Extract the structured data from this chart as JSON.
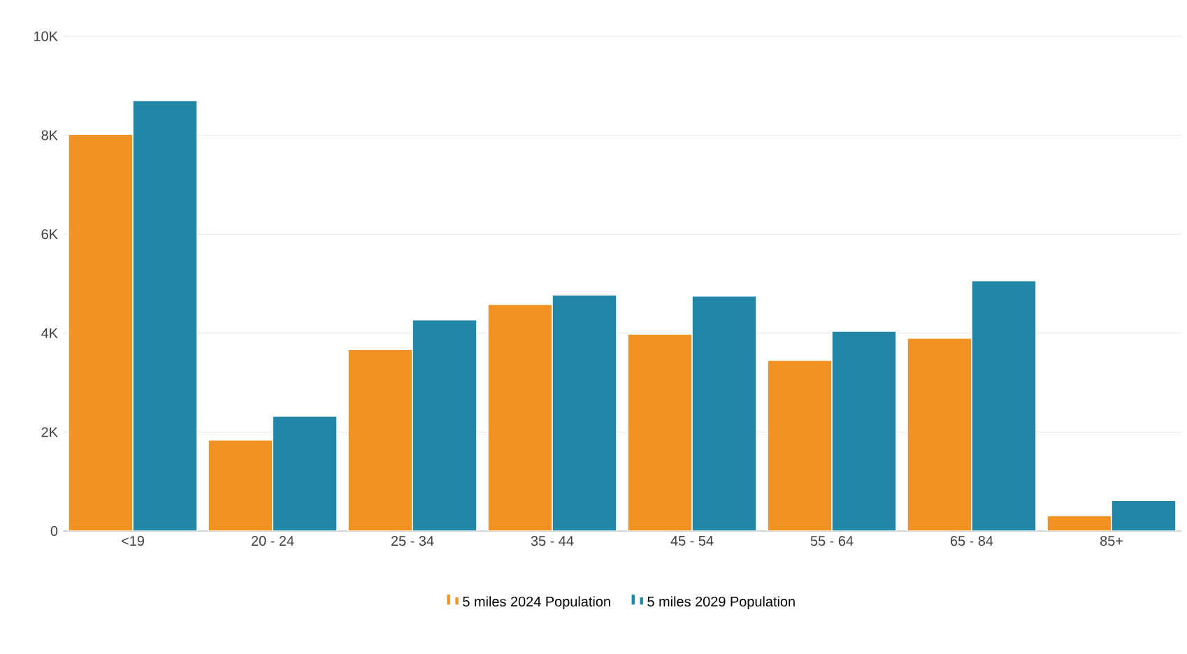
{
  "chart_data": {
    "type": "bar",
    "categories": [
      "<19",
      "20 - 24",
      "25 - 34",
      "35 - 44",
      "45 - 54",
      "55 - 64",
      "65 - 84",
      "85+"
    ],
    "series": [
      {
        "name": "5 miles 2024 Population",
        "color": "#f29222",
        "values": [
          8020,
          1840,
          3670,
          4580,
          3980,
          3450,
          3900,
          310
        ]
      },
      {
        "name": "5 miles 2029 Population",
        "color": "#2287a7",
        "values": [
          8700,
          2320,
          4270,
          4770,
          4750,
          4040,
          5060,
          620
        ]
      }
    ],
    "ylim": [
      0,
      10000
    ],
    "yticks": [
      0,
      {
        "value": 2000,
        "label": "2K"
      },
      {
        "value": 4000,
        "label": "4K"
      },
      {
        "value": 6000,
        "label": "6K"
      },
      {
        "value": 8000,
        "label": "8K"
      },
      {
        "value": 10000,
        "label": "10K"
      }
    ],
    "grid": "y",
    "legend": "bottom"
  }
}
